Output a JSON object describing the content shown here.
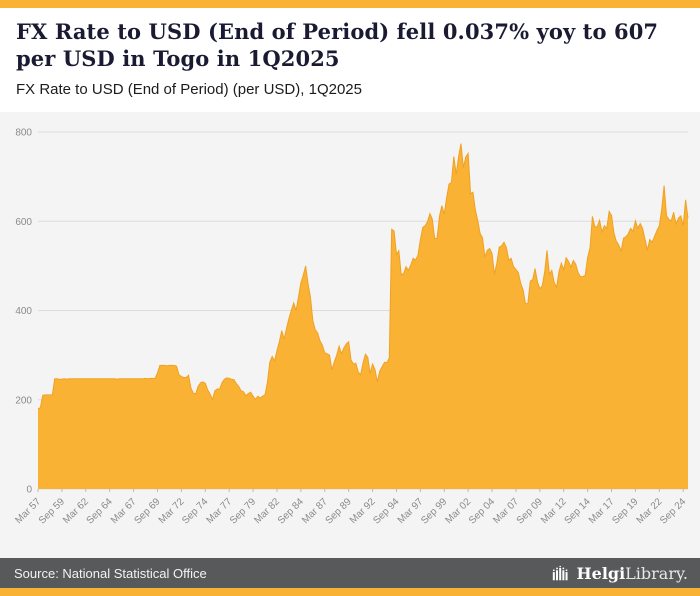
{
  "header": {
    "title": "FX Rate to USD (End of Period) fell 0.037% yoy to 607 per USD in Togo in 1Q2025",
    "subtitle": "FX Rate to USD (End of Period) (per USD), 1Q2025"
  },
  "footer": {
    "source": "Source: National Statistical Office",
    "logo_bold": "Helgi",
    "logo_regular": "Library."
  },
  "colors": {
    "accent_orange": "#F9B233",
    "area_fill": "#F9B233",
    "area_edge": "#F0A125",
    "footer_bg": "#58595B",
    "chart_bg": "#F4F4F4",
    "grid": "#DCDCDC",
    "tick": "#BBBBBB",
    "axis_text": "#8A8A8A",
    "title_text": "#1A1B33"
  },
  "chart_data": {
    "type": "area",
    "title": "FX Rate to USD (End of Period) fell 0.037% yoy to 607 per USD in Togo in 1Q2025",
    "subtitle": "FX Rate to USD (End of Period) (per USD), 1Q2025",
    "xlabel": "",
    "ylabel": "",
    "ylim": [
      0,
      800
    ],
    "yticks": [
      0,
      200,
      400,
      600,
      800
    ],
    "grid": true,
    "legend": "none",
    "frequency": "quarterly",
    "x_start": "Mar 1957",
    "x_end": "Mar 2025",
    "x_tick_every": 10,
    "x_tick_labels": [
      "Mar 57",
      "Sep 59",
      "Mar 62",
      "Sep 64",
      "Mar 67",
      "Sep 69",
      "Mar 72",
      "Sep 74",
      "Mar 77",
      "Sep 79",
      "Mar 82",
      "Sep 84",
      "Mar 87",
      "Sep 89",
      "Mar 92",
      "Sep 94",
      "Mar 97",
      "Sep 99",
      "Mar 02",
      "Sep 04",
      "Mar 07",
      "Sep 09",
      "Mar 12",
      "Sep 14",
      "Mar 17",
      "Sep 19",
      "Mar 22",
      "Sep 24"
    ],
    "last_value": 607,
    "series": [
      {
        "name": "FX Rate to USD (End of Period) (per USD)",
        "values": [
          180,
          182,
          210,
          211,
          211,
          211,
          211,
          247,
          247,
          246,
          246,
          247,
          246,
          247,
          247,
          247,
          247,
          247,
          247,
          247,
          247,
          247,
          247,
          247,
          247,
          247,
          247,
          247,
          247,
          247,
          247,
          247,
          247,
          246,
          247,
          247,
          247,
          247,
          247,
          247,
          247,
          247,
          247,
          247,
          247,
          248,
          247,
          248,
          248,
          248,
          260,
          277,
          277,
          277,
          276,
          277,
          277,
          277,
          275,
          256,
          252,
          250,
          250,
          255,
          226,
          215,
          213,
          230,
          238,
          240,
          237,
          222,
          213,
          200,
          220,
          224,
          224,
          238,
          246,
          249,
          248,
          246,
          245,
          236,
          230,
          220,
          218,
          209,
          214,
          217,
          208,
          201,
          208,
          204,
          208,
          211,
          239,
          284,
          297,
          287,
          310,
          330,
          355,
          336,
          360,
          382,
          400,
          417,
          400,
          430,
          462,
          479,
          500,
          460,
          430,
          378,
          357,
          350,
          332,
          322,
          305,
          303,
          300,
          267,
          285,
          300,
          320,
          303,
          316,
          325,
          330,
          289,
          280,
          282,
          262,
          256,
          282,
          302,
          295,
          259,
          280,
          268,
          240,
          264,
          274,
          284,
          283,
          294,
          582,
          578,
          526,
          534,
          480,
          483,
          498,
          490,
          502,
          517,
          513,
          524,
          558,
          586,
          590,
          599,
          617,
          605,
          561,
          562,
          611,
          635,
          616,
          653,
          683,
          687,
          745,
          705,
          745,
          774,
          720,
          744,
          752,
          662,
          665,
          626,
          602,
          573,
          563,
          520,
          535,
          539,
          528,
          481,
          506,
          542,
          545,
          553,
          541,
          513,
          517,
          498,
          492,
          485,
          461,
          446,
          415,
          416,
          466,
          469,
          494,
          464,
          449,
          455,
          486,
          535,
          481,
          490,
          463,
          452,
          487,
          506,
          491,
          518,
          510,
          497,
          512,
          504,
          485,
          476,
          476,
          479,
          519,
          540,
          611,
          588,
          587,
          602,
          576,
          590,
          584,
          622,
          613,
          574,
          555,
          547,
          533,
          562,
          565,
          572,
          584,
          577,
          601,
          584,
          595,
          584,
          560,
          535,
          559,
          553,
          566,
          579,
          590,
          627,
          680,
          613,
          604,
          601,
          620,
          594,
          607,
          612,
          590,
          648,
          607
        ]
      }
    ]
  }
}
